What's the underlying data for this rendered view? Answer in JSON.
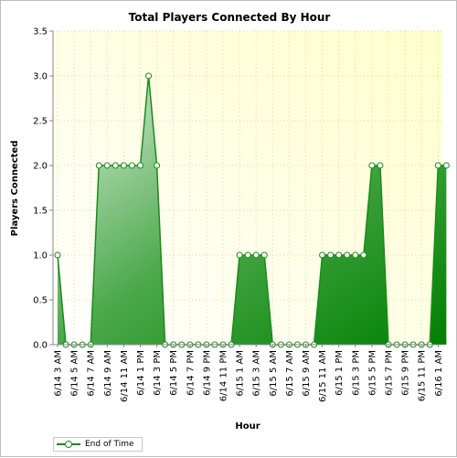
{
  "chart_data": {
    "type": "area",
    "title": "Total Players Connected By Hour",
    "xlabel": "Hour",
    "ylabel": "Players Connected",
    "ylim": [
      0,
      3.5
    ],
    "yticks": [
      "0.0",
      "0.5",
      "1.0",
      "1.5",
      "2.0",
      "2.5",
      "3.0",
      "3.5"
    ],
    "grid": true,
    "legend_position": "bottom-left",
    "tick_labels": [
      "6/14 3 AM",
      "6/14 5 AM",
      "6/14 7 AM",
      "6/14 9 AM",
      "6/14 11 AM",
      "6/14 1 PM",
      "6/14 3 PM",
      "6/14 5 PM",
      "6/14 7 PM",
      "6/14 9 PM",
      "6/14 11 PM",
      "6/15 1 AM",
      "6/15 3 AM",
      "6/15 5 AM",
      "6/15 7 AM",
      "6/15 9 AM",
      "6/15 11 AM",
      "6/15 1 PM",
      "6/15 3 PM",
      "6/15 5 PM",
      "6/15 7 PM",
      "6/15 9 PM",
      "6/15 11 PM",
      "6/16 1 AM"
    ],
    "series": [
      {
        "name": "End of Time",
        "color": "#1b8a1b",
        "values": [
          1,
          0,
          0,
          0,
          0,
          2,
          2,
          2,
          2,
          2,
          2,
          3,
          2,
          0,
          0,
          0,
          0,
          0,
          0,
          0,
          0,
          0,
          1,
          1,
          1,
          1,
          0,
          0,
          0,
          0,
          0,
          0,
          1,
          1,
          1,
          1,
          1,
          1,
          2,
          2,
          0,
          0,
          0,
          0,
          0,
          0,
          2,
          2
        ]
      }
    ]
  }
}
